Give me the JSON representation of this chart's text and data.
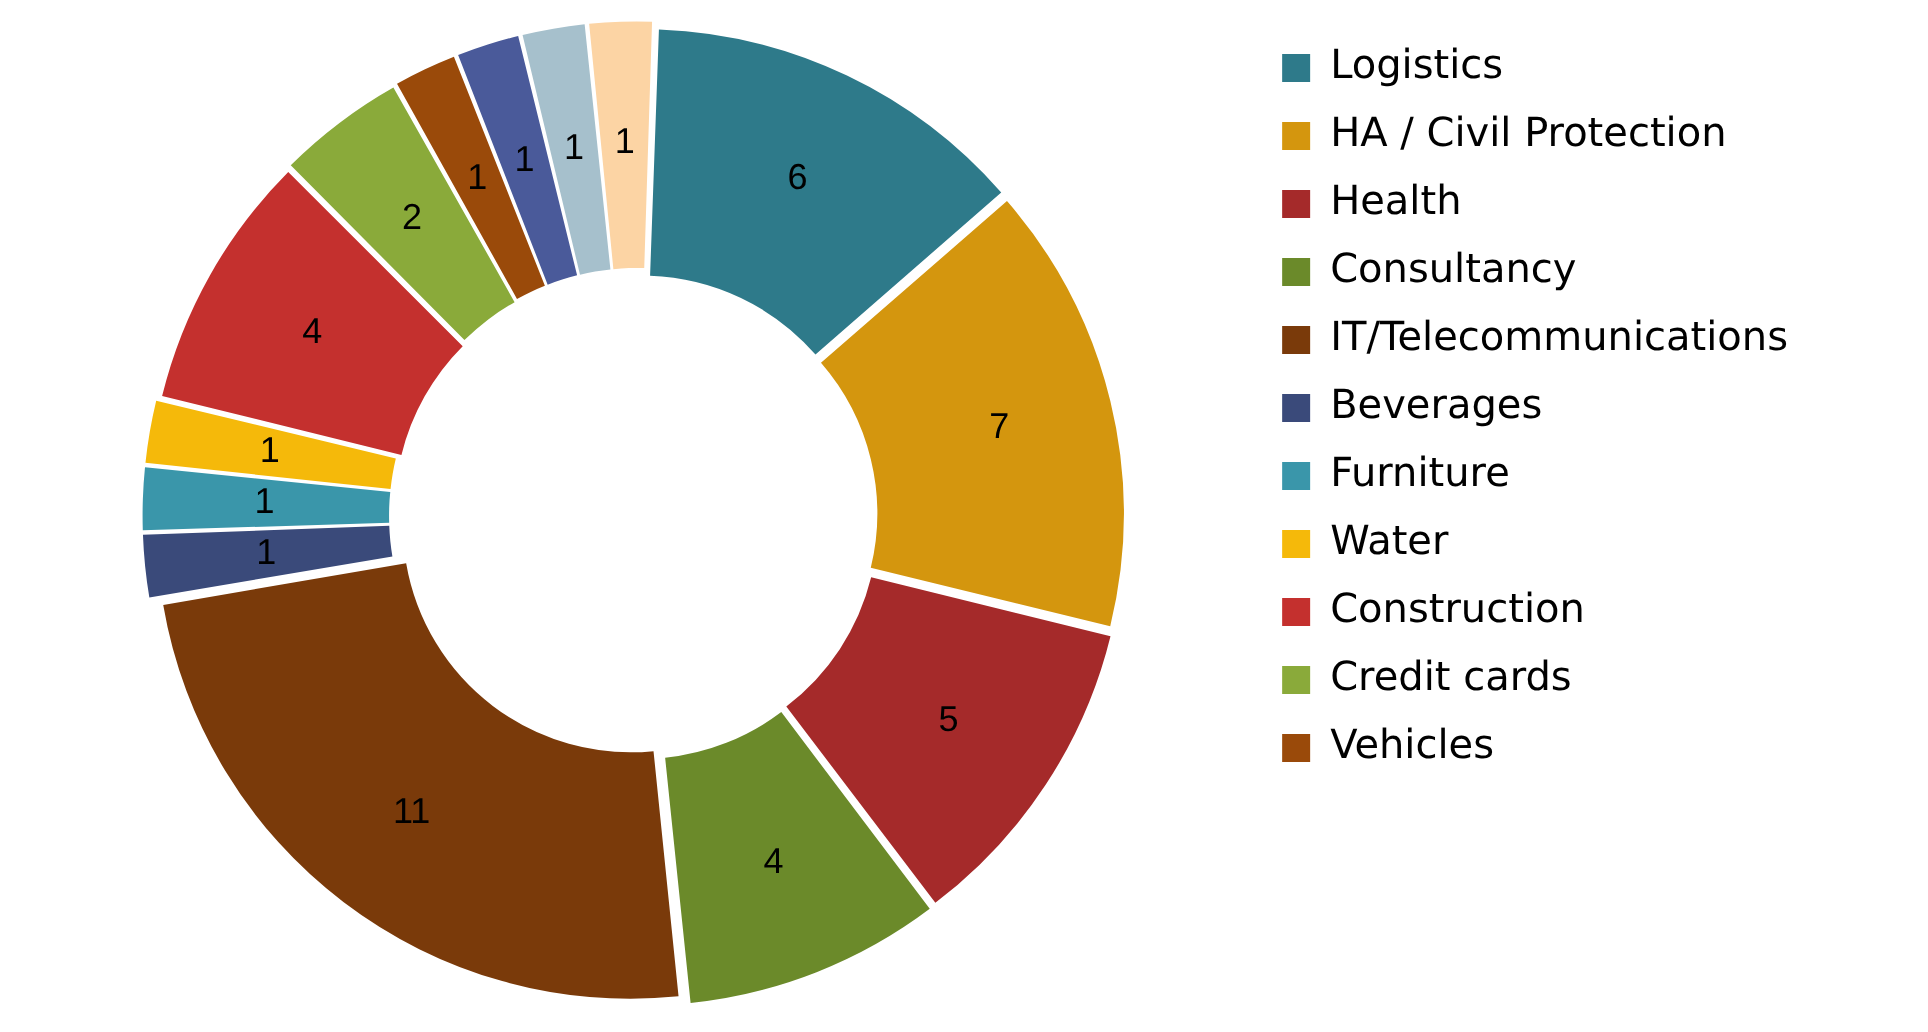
{
  "chart_data": {
    "type": "donut",
    "categories": [
      "Logistics",
      "HA / Civil Protection",
      "Health",
      "Consultancy",
      "IT/Telecommunications",
      "Beverages",
      "Furniture",
      "Water",
      "Construction",
      "Credit cards",
      "Vehicles",
      null,
      null,
      null
    ],
    "values": [
      6,
      7,
      5,
      4,
      11,
      1,
      1,
      1,
      4,
      2,
      1,
      1,
      1,
      1
    ],
    "colors": [
      "#2e7a8a",
      "#d4960e",
      "#a52a2a",
      "#6b8a2a",
      "#7a3a0a",
      "#3a4a7a",
      "#3a96aa",
      "#f5b90a",
      "#c4302e",
      "#8aaa3a",
      "#9a4a0a",
      "#4a5a9a",
      "#a6c0cc",
      "#fcd4a4"
    ],
    "data_labels": true,
    "legend": "right"
  }
}
